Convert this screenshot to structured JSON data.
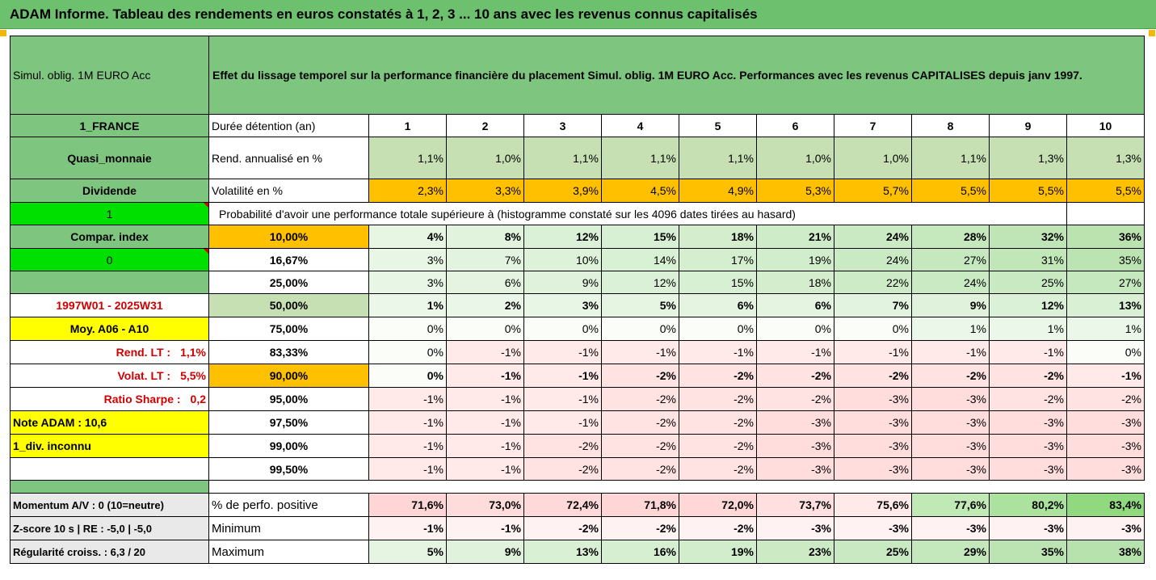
{
  "title": "ADAM Informe. Tableau des rendements en euros constatés à 1, 2, 3 ... 10 ans avec les revenus connus capitalisés",
  "header": {
    "fund_name": "Simul. oblig. 1M EURO Acc",
    "description": "Effet du lissage temporel sur la performance financière du placement Simul. oblig. 1M EURO Acc. Performances avec les revenus CAPITALISES depuis janv 1997."
  },
  "left": {
    "country": "1_FRANCE",
    "category": "Quasi_monnaie",
    "dividend": "Dividende",
    "flag1": "1",
    "compar": "Compar. index",
    "flag0": "0",
    "period": "1997W01 - 2025W31",
    "moy": "Moy. A06 - A10",
    "rend_lt_label": "Rend. LT :",
    "rend_lt_value": "1,1%",
    "volat_lt_label": "Volat. LT :",
    "volat_lt_value": "5,5%",
    "sharpe_label": "Ratio Sharpe :",
    "sharpe_value": "0,2",
    "note": "Note ADAM : 10,6",
    "div": "1_div. inconnu",
    "momentum": "Momentum A/V : 0 (10=neutre)",
    "zscore": "Z-score 10 s  |  RE : -5,0  |  -5,0",
    "regularite": "Régularité croiss. : 6,3 / 20"
  },
  "table": {
    "duration_label": "Durée détention (an)",
    "years": [
      "1",
      "2",
      "3",
      "4",
      "5",
      "6",
      "7",
      "8",
      "9",
      "10"
    ],
    "rend_label": "Rend. annualisé en %",
    "rend": [
      "1,1%",
      "1,0%",
      "1,1%",
      "1,1%",
      "1,1%",
      "1,0%",
      "1,0%",
      "1,1%",
      "1,3%",
      "1,3%"
    ],
    "vol_label": "Volatilité en %",
    "vol": [
      "2,3%",
      "3,3%",
      "3,9%",
      "4,5%",
      "4,9%",
      "5,3%",
      "5,7%",
      "5,5%",
      "5,5%",
      "5,5%"
    ],
    "prob_label": "Probabilité d'avoir une performance totale supérieure à (histogramme constaté sur les 4096 dates tirées au hasard)",
    "quantiles": [
      {
        "p": "10,00%",
        "v": [
          "4%",
          "8%",
          "12%",
          "15%",
          "18%",
          "21%",
          "24%",
          "28%",
          "32%",
          "36%"
        ]
      },
      {
        "p": "16,67%",
        "v": [
          "3%",
          "7%",
          "10%",
          "14%",
          "17%",
          "19%",
          "24%",
          "27%",
          "31%",
          "35%"
        ]
      },
      {
        "p": "25,00%",
        "v": [
          "3%",
          "6%",
          "9%",
          "12%",
          "15%",
          "18%",
          "22%",
          "24%",
          "25%",
          "27%"
        ]
      },
      {
        "p": "50,00%",
        "v": [
          "1%",
          "2%",
          "3%",
          "5%",
          "6%",
          "6%",
          "7%",
          "9%",
          "12%",
          "13%"
        ]
      },
      {
        "p": "75,00%",
        "v": [
          "0%",
          "0%",
          "0%",
          "0%",
          "0%",
          "0%",
          "0%",
          "1%",
          "1%",
          "1%"
        ]
      },
      {
        "p": "83,33%",
        "v": [
          "0%",
          "-1%",
          "-1%",
          "-1%",
          "-1%",
          "-1%",
          "-1%",
          "-1%",
          "-1%",
          "0%"
        ]
      },
      {
        "p": "90,00%",
        "v": [
          "0%",
          "-1%",
          "-1%",
          "-2%",
          "-2%",
          "-2%",
          "-2%",
          "-2%",
          "-2%",
          "-1%"
        ]
      },
      {
        "p": "95,00%",
        "v": [
          "-1%",
          "-1%",
          "-1%",
          "-2%",
          "-2%",
          "-2%",
          "-3%",
          "-3%",
          "-2%",
          "-2%"
        ]
      },
      {
        "p": "97,50%",
        "v": [
          "-1%",
          "-1%",
          "-1%",
          "-2%",
          "-2%",
          "-3%",
          "-3%",
          "-3%",
          "-3%",
          "-3%"
        ]
      },
      {
        "p": "99,00%",
        "v": [
          "-1%",
          "-1%",
          "-2%",
          "-2%",
          "-2%",
          "-3%",
          "-3%",
          "-3%",
          "-3%",
          "-3%"
        ]
      },
      {
        "p": "99,50%",
        "v": [
          "-1%",
          "-1%",
          "-2%",
          "-2%",
          "-2%",
          "-3%",
          "-3%",
          "-3%",
          "-3%",
          "-3%"
        ]
      }
    ],
    "pos_label": "% de perfo. positive",
    "pos": [
      "71,6%",
      "73,0%",
      "72,4%",
      "71,8%",
      "72,0%",
      "73,7%",
      "75,6%",
      "77,6%",
      "80,2%",
      "83,4%"
    ],
    "min_label": "Minimum",
    "min": [
      "-1%",
      "-1%",
      "-2%",
      "-2%",
      "-2%",
      "-3%",
      "-3%",
      "-3%",
      "-3%",
      "-3%"
    ],
    "max_label": "Maximum",
    "max": [
      "5%",
      "9%",
      "13%",
      "16%",
      "19%",
      "23%",
      "25%",
      "29%",
      "35%",
      "38%"
    ]
  },
  "colors": {
    "green": "#7ec67f",
    "light_green": "#c6e0b4",
    "orange": "#ffc000",
    "bright_green": "#00e000",
    "yellow": "#ffff00",
    "red_text": "#d00000"
  }
}
